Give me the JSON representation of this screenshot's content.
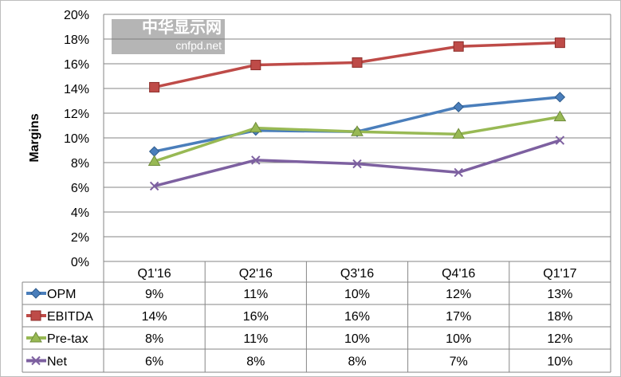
{
  "chart_data": {
    "type": "line",
    "title": "",
    "xlabel": "",
    "ylabel": "Margins",
    "ylim": [
      0,
      20
    ],
    "yticks": [
      "0%",
      "2%",
      "4%",
      "6%",
      "8%",
      "10%",
      "12%",
      "14%",
      "16%",
      "18%",
      "20%"
    ],
    "grid": true,
    "legend": "data-table-left",
    "categories": [
      "Q1'16",
      "Q2'16",
      "Q3'16",
      "Q4'16",
      "Q1'17"
    ],
    "series": [
      {
        "name": "OPM",
        "color": "#4a7ebb",
        "marker": "diamond",
        "values": [
          8.9,
          10.6,
          10.5,
          12.5,
          13.3
        ],
        "labels": [
          "9%",
          "11%",
          "10%",
          "12%",
          "13%"
        ]
      },
      {
        "name": "EBITDA",
        "color": "#be4b48",
        "marker": "square",
        "values": [
          14.1,
          15.9,
          16.1,
          17.4,
          17.7
        ],
        "labels": [
          "14%",
          "16%",
          "16%",
          "17%",
          "18%"
        ]
      },
      {
        "name": "Pre-tax",
        "color": "#98b954",
        "marker": "triangle",
        "values": [
          8.1,
          10.8,
          10.5,
          10.3,
          11.7
        ],
        "labels": [
          "8%",
          "11%",
          "10%",
          "10%",
          "12%"
        ]
      },
      {
        "name": "Net",
        "color": "#7d60a0",
        "marker": "x",
        "values": [
          6.1,
          8.2,
          7.9,
          7.2,
          9.8
        ],
        "labels": [
          "6%",
          "8%",
          "8%",
          "7%",
          "10%"
        ]
      }
    ]
  },
  "watermark": {
    "title": "中华显示网",
    "url": "cnfpd.net"
  }
}
